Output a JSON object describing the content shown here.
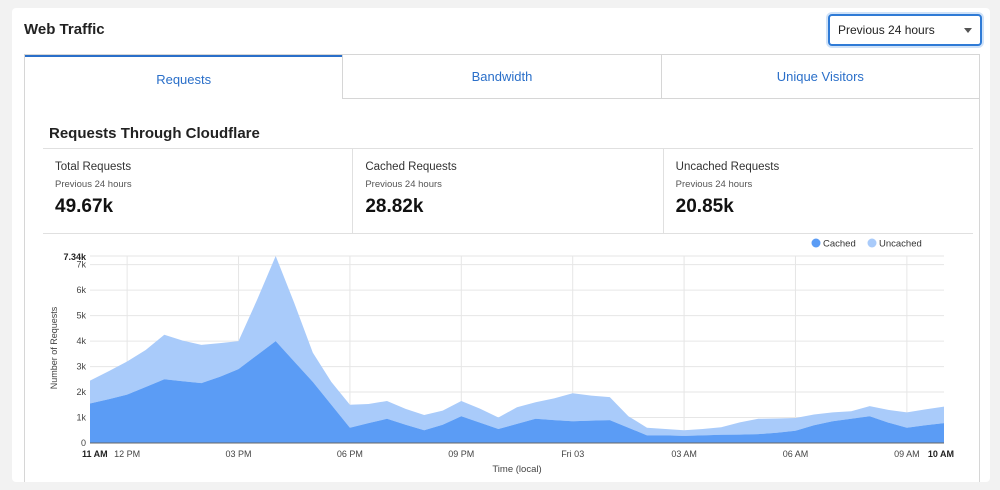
{
  "header": {
    "title": "Web Traffic",
    "range_label": "Previous 24 hours"
  },
  "tabs": [
    {
      "label": "Requests",
      "active": true
    },
    {
      "label": "Bandwidth",
      "active": false
    },
    {
      "label": "Unique Visitors",
      "active": false
    }
  ],
  "section": {
    "title": "Requests Through Cloudflare"
  },
  "stats": [
    {
      "label": "Total Requests",
      "period": "Previous 24 hours",
      "value": "49.67k"
    },
    {
      "label": "Cached Requests",
      "period": "Previous 24 hours",
      "value": "28.82k"
    },
    {
      "label": "Uncached Requests",
      "period": "Previous 24 hours",
      "value": "20.85k"
    }
  ],
  "colors": {
    "accent": "#2a6fc9",
    "cached": "#5b9cf5",
    "uncached": "#a9cbfa"
  },
  "chart_data": {
    "type": "area",
    "stacked": true,
    "ylabel": "Number of Requests",
    "xlabel": "Time (local)",
    "ylim": [
      0,
      7340
    ],
    "y_ticks": [
      "0",
      "1k",
      "2k",
      "3k",
      "4k",
      "5k",
      "6k",
      "7k"
    ],
    "y_max_label": "7.34k",
    "x_start_label": "11 AM",
    "x_end_label": "10 AM",
    "x_tick_labels": [
      {
        "label": "12 PM",
        "at_hour": 1
      },
      {
        "label": "03 PM",
        "at_hour": 4
      },
      {
        "label": "06 PM",
        "at_hour": 7
      },
      {
        "label": "09 PM",
        "at_hour": 10
      },
      {
        "label": "Fri 03",
        "at_hour": 13
      },
      {
        "label": "03 AM",
        "at_hour": 16
      },
      {
        "label": "06 AM",
        "at_hour": 19
      },
      {
        "label": "09 AM",
        "at_hour": 22
      }
    ],
    "legend": {
      "position": "top-right"
    },
    "x_hours": [
      0,
      0.5,
      1,
      1.5,
      2,
      2.5,
      3,
      3.5,
      4,
      4.5,
      5,
      5.5,
      6,
      6.5,
      7,
      7.5,
      8,
      8.5,
      9,
      9.5,
      10,
      10.5,
      11,
      11.5,
      12,
      12.5,
      13,
      13.5,
      14,
      14.5,
      15,
      15.5,
      16,
      16.5,
      17,
      17.5,
      18,
      18.5,
      19,
      19.5,
      20,
      20.5,
      21,
      21.5,
      22,
      22.5,
      23
    ],
    "series": [
      {
        "name": "Cached",
        "values": [
          1550,
          1720,
          1900,
          2200,
          2500,
          2420,
          2350,
          2600,
          2900,
          3450,
          4000,
          3200,
          2400,
          1500,
          600,
          780,
          950,
          720,
          500,
          720,
          1050,
          800,
          550,
          750,
          950,
          900,
          850,
          880,
          900,
          600,
          300,
          300,
          280,
          300,
          320,
          330,
          350,
          400,
          480,
          700,
          850,
          950,
          1050,
          800,
          600,
          700,
          780
        ]
      },
      {
        "name": "Uncached",
        "values": [
          900,
          1100,
          1300,
          1450,
          1750,
          1600,
          1500,
          1320,
          1100,
          2170,
          3340,
          2300,
          1150,
          900,
          900,
          750,
          700,
          620,
          600,
          550,
          600,
          550,
          450,
          650,
          650,
          850,
          1100,
          980,
          900,
          450,
          300,
          250,
          220,
          250,
          300,
          480,
          600,
          560,
          500,
          420,
          350,
          300,
          400,
          500,
          600,
          620,
          650
        ]
      }
    ]
  }
}
